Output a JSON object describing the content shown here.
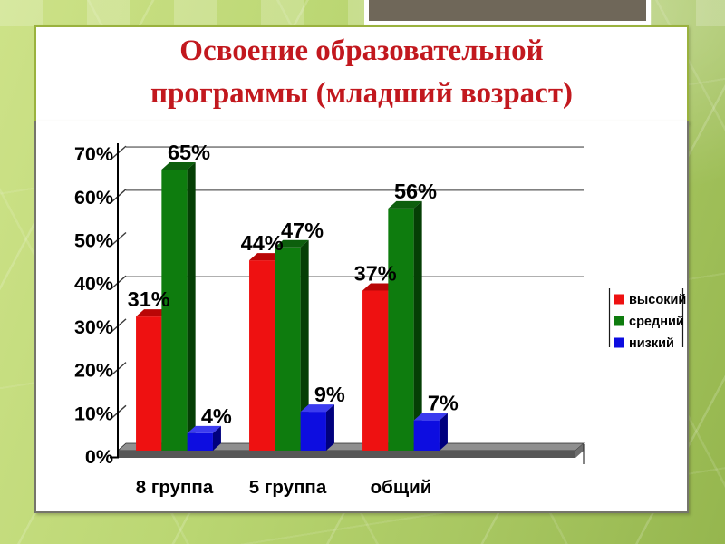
{
  "slide": {
    "title_line1": "Освоение образовательной",
    "title_line2": "программы (младший возраст)",
    "title_color": "#c2181e"
  },
  "chart_data": {
    "type": "bar",
    "style": "3d-column",
    "title": "Освоение образовательной программы (младший возраст)",
    "categories": [
      "8 группа",
      "5 группа",
      "общий"
    ],
    "series": [
      {
        "name": "высокий",
        "values": [
          31,
          44,
          37
        ],
        "color": "#ee1111",
        "color_top": "#b90606",
        "color_side": "#8f0202"
      },
      {
        "name": "средний",
        "values": [
          65,
          47,
          56
        ],
        "color": "#0e7c0e",
        "color_top": "#0d5f0d",
        "color_side": "#053f05"
      },
      {
        "name": "низкий",
        "values": [
          4,
          9,
          7
        ],
        "color": "#0d0de0",
        "color_top": "#3c3cef",
        "color_side": "#00007e"
      }
    ],
    "data_labels": [
      [
        "31%",
        "44%",
        "37%"
      ],
      [
        "65%",
        "47%",
        "56%"
      ],
      [
        "4%",
        "9%",
        "7%"
      ]
    ],
    "y_axis": {
      "min": 0,
      "max": 70,
      "step": 10,
      "labels": [
        "0%",
        "10%",
        "20%",
        "30%",
        "40%",
        "50%",
        "60%",
        "70%"
      ]
    },
    "gridlines_at": [
      40,
      60,
      70
    ],
    "grid_color": "#808080",
    "floor_color_top": "#8f8f8f",
    "floor_color_front": "#575757",
    "floor_color_side": "#6e6e6e",
    "legend": {
      "position": "right",
      "entries": [
        "высокий",
        "средний",
        "низкий"
      ]
    }
  }
}
